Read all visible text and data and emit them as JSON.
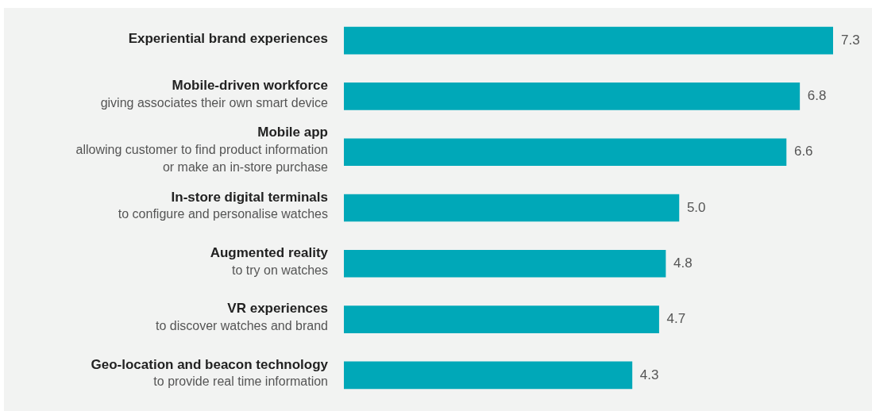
{
  "chart_data": {
    "type": "bar",
    "orientation": "horizontal",
    "legend": false,
    "value_labels": [
      "7.3",
      "6.8",
      "6.6",
      "5.0",
      "4.8",
      "4.7",
      "4.3"
    ],
    "categories": [
      "Experiential brand experiences",
      "Mobile-driven workforce\ngiving associates their own smart device",
      "Mobile app\nallowing customer to find product information\nor make an in-store purchase",
      "In-store digital terminals\nto configure and personalise watches",
      "Augmented reality\nto try on watches",
      "VR experiences\nto discover watches and brand",
      "Geo-location and beacon technology\nto provide real time information"
    ],
    "values": [
      7.3,
      6.8,
      6.6,
      5.0,
      4.8,
      4.7,
      4.3
    ],
    "color": "#00a8b8"
  }
}
